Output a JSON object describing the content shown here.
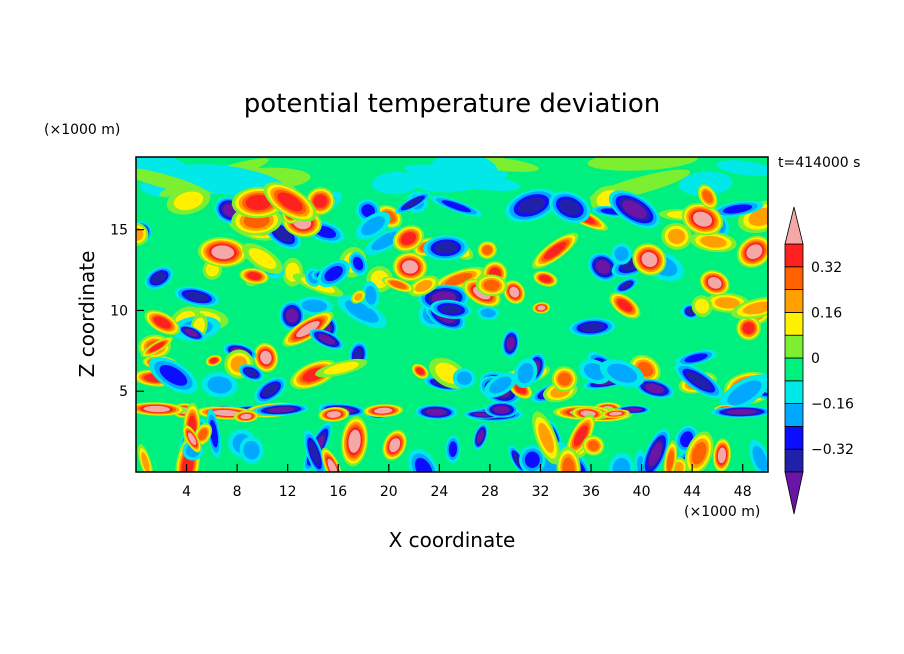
{
  "chart_data": {
    "type": "heatmap",
    "title": "potential temperature deviation",
    "time_label": "t=414000 s",
    "xlabel": "X coordinate",
    "ylabel": "Z coordinate",
    "x_unit": "(×1000 m)",
    "y_unit": "(×1000 m)",
    "xlim": [
      0,
      50
    ],
    "ylim": [
      0,
      19.5
    ],
    "x_ticks": [
      4,
      8,
      12,
      16,
      20,
      24,
      28,
      32,
      36,
      40,
      44,
      48
    ],
    "y_ticks": [
      5,
      10,
      15
    ],
    "colorbar": {
      "levels": [
        -0.4,
        -0.32,
        -0.24,
        -0.16,
        -0.08,
        0,
        0.08,
        0.16,
        0.24,
        0.32,
        0.4
      ],
      "labels": [
        "0.32",
        "0.16",
        "0",
        "−0.16",
        "−0.32"
      ],
      "label_values": [
        0.32,
        0.16,
        0,
        -0.16,
        -0.32
      ],
      "colors_low_to_high": [
        "#6a14a8",
        "#2020a8",
        "#0c0cff",
        "#00a8ff",
        "#00e8e8",
        "#00f080",
        "#7cf030",
        "#fff000",
        "#ffa000",
        "#ff6000",
        "#ff2020",
        "#f4a8a8"
      ]
    }
  }
}
